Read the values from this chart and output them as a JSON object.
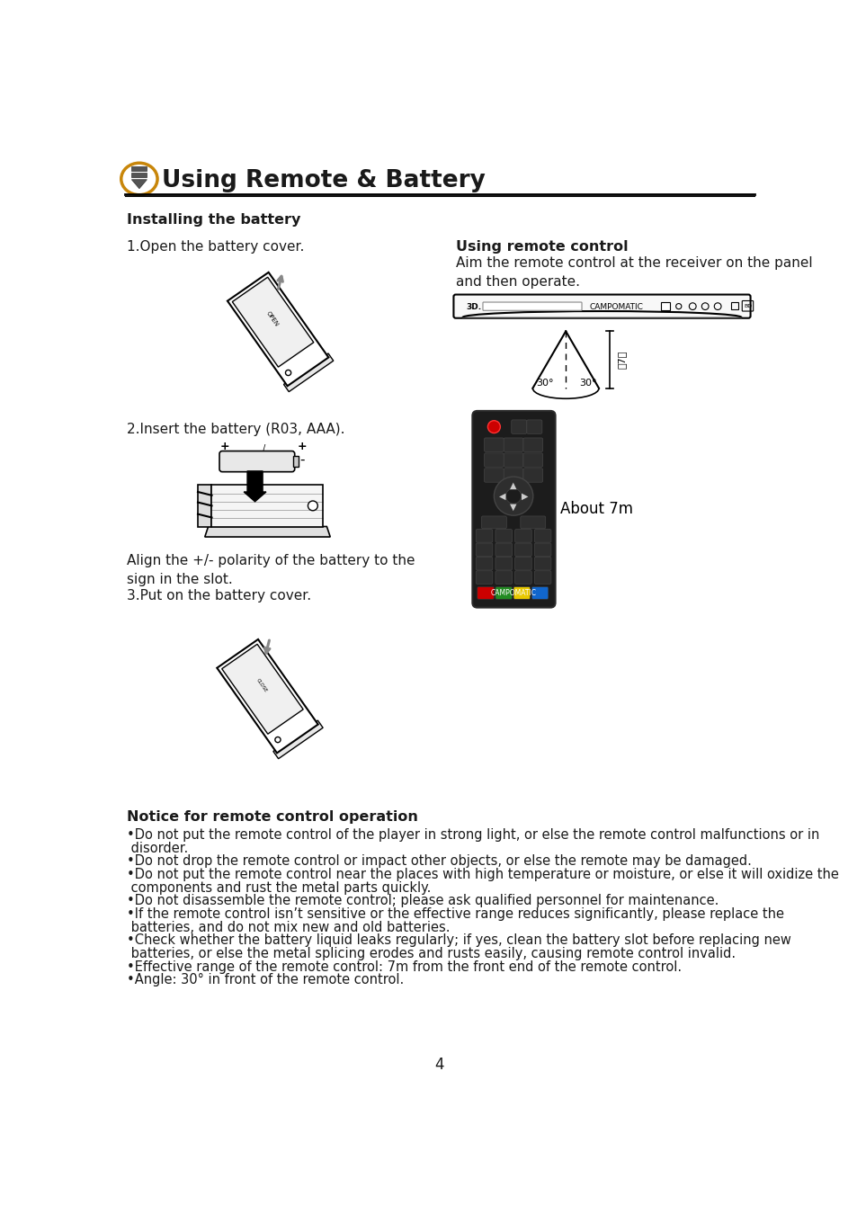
{
  "title": "Using Remote & Battery",
  "page_number": "4",
  "background_color": "#ffffff",
  "text_color": "#000000",
  "installing_battery_title": "Installing the battery",
  "step1_text": "1.Open the battery cover.",
  "step2_text": "2.Insert the battery (R03, AAA).",
  "step3_align_text": "Align the +/- polarity of the battery to the\nsign in the slot.",
  "step3_text": "3.Put on the battery cover.",
  "remote_title": "Using remote control",
  "remote_desc": "Aim the remote control at the receiver on the panel\nand then operate.",
  "about_7m_text": "About 7m",
  "notice_title": "Notice for remote control operation",
  "notice_bullets": [
    "•Do not put the remote control of the player in strong light, or else the remote control malfunctions or in\n disorder.",
    "•Do not drop the remote control or impact other objects, or else the remote may be damaged.",
    "•Do not put the remote control near the places with high temperature or moisture, or else it will oxidize the\n components and rust the metal parts quickly.",
    "•Do not disassemble the remote control; please ask qualified personnel for maintenance.",
    "•If the remote control isn’t sensitive or the effective range reduces significantly, please replace the\n batteries, and do not mix new and old batteries.",
    "•Check whether the battery liquid leaks regularly; if yes, clean the battery slot before replacing new\n batteries, or else the metal splicing erodes and rusts easily, causing remote control invalid.",
    "•Effective range of the remote control: 7m from the front end of the remote control.",
    "•Angle: 30° in front of the remote control."
  ]
}
